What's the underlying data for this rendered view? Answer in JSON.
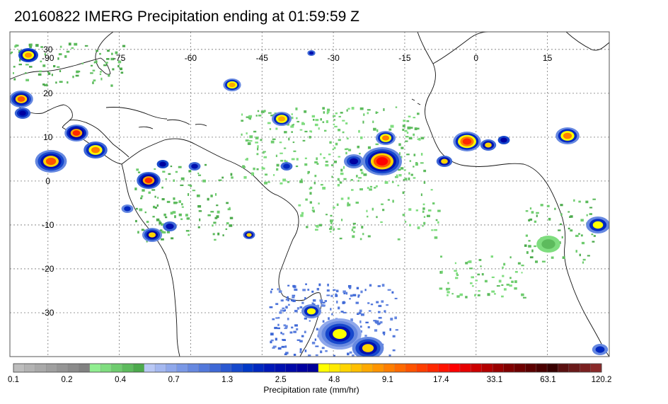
{
  "title": "20160822 IMERG Precipitation ending at 01:59:59 Z",
  "map": {
    "lon_range": [
      -98,
      28
    ],
    "lat_range": [
      -40,
      34
    ],
    "lon_labels": [
      "-90",
      "-75",
      "-60",
      "-45",
      "-30",
      "-15",
      "0",
      "15"
    ],
    "lat_labels": [
      "30",
      "20",
      "10",
      "0",
      "-10",
      "-20",
      "-30"
    ],
    "lon_values": [
      -90,
      -75,
      -60,
      -45,
      -30,
      -15,
      0,
      15
    ],
    "lat_values": [
      30,
      20,
      10,
      0,
      -10,
      -20,
      -30
    ]
  },
  "colorbar": {
    "title": "Precipitation rate (mm/hr)",
    "tick_labels": [
      "0.1",
      "0.2",
      "0.4",
      "0.7",
      "1.3",
      "2.5",
      "4.8",
      "9.1",
      "17.4",
      "33.1",
      "63.1",
      "120.2"
    ],
    "colors": [
      "#bdbdbd",
      "#b3b3b3",
      "#a9a9a9",
      "#9f9f9f",
      "#959595",
      "#8b8b8b",
      "#818181",
      "#90ee90",
      "#7fdd7f",
      "#6ecc6e",
      "#5dbb5d",
      "#4caa4c",
      "#b9c8f5",
      "#a4b8f0",
      "#8fa8eb",
      "#7a98e6",
      "#6688e0",
      "#5278db",
      "#3e68d6",
      "#2a58d1",
      "#1648cc",
      "#0038c7",
      "#0028c0",
      "#0018b8",
      "#0010b0",
      "#0008a8",
      "#0000a0",
      "#000098",
      "#ffff00",
      "#ffea00",
      "#ffd400",
      "#ffbf00",
      "#ffa900",
      "#ff9400",
      "#ff7e00",
      "#ff6900",
      "#ff5300",
      "#ff3e00",
      "#ff2800",
      "#ff1300",
      "#ff0000",
      "#e60000",
      "#cc0000",
      "#b30000",
      "#990000",
      "#800000",
      "#6e0000",
      "#5c0000",
      "#4a0000",
      "#380000",
      "#5a1010",
      "#6a1a1a",
      "#7a2020",
      "#8a2a2a"
    ]
  }
}
